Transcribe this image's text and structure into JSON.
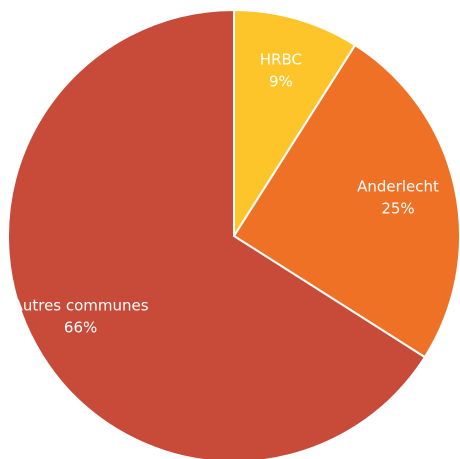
{
  "chart_data": {
    "type": "pie",
    "start_angle_deg": 0,
    "direction": "clockwise",
    "slices": [
      {
        "label": "HRBC",
        "percent_label": "9%",
        "value": 9,
        "color": "#fec52a"
      },
      {
        "label": "Anderlecht",
        "percent_label": "25%",
        "value": 25,
        "color": "#ef7125"
      },
      {
        "label": "Autres communes",
        "percent_label": "66%",
        "value": 66,
        "color": "#c84b3a"
      }
    ]
  }
}
